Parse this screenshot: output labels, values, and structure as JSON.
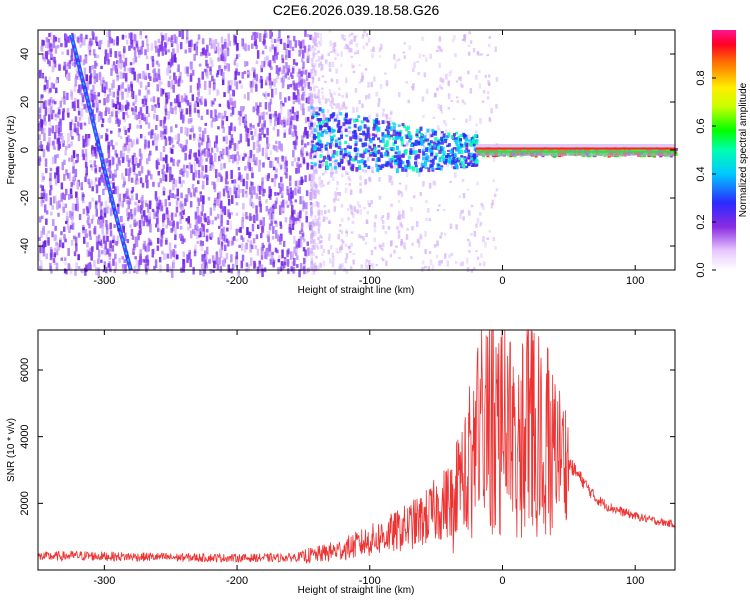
{
  "title": "C2E6.2026.039.18.58.G26",
  "chart_data": [
    {
      "type": "heatmap",
      "xlabel": "Height of straight line (km)",
      "ylabel": "Frequency (Hz)",
      "xlim": [
        -350,
        130
      ],
      "ylim": [
        -50,
        50
      ],
      "xticks": [
        -300,
        -200,
        -100,
        0,
        100
      ],
      "yticks": [
        -40,
        -20,
        0,
        20,
        40
      ],
      "colorbar": {
        "label": "Normalized spectral amplitude",
        "range": [
          0,
          1
        ],
        "ticks": [
          0.0,
          0.2,
          0.4,
          0.6,
          0.8
        ],
        "tick_labels": [
          "0.0",
          "0.2",
          "0.4",
          "0.6",
          "0.8"
        ]
      },
      "features": {
        "noise_region": [
          -350,
          -145
        ],
        "drifting_trace": [
          [
            -325,
            48
          ],
          [
            -310,
            15
          ],
          [
            -300,
            -8
          ],
          [
            -290,
            -30
          ],
          [
            -280,
            -50
          ]
        ],
        "carrier_band": [
          [
            -145,
            6
          ],
          [
            -100,
            3
          ],
          [
            -60,
            1
          ],
          [
            -20,
            0
          ],
          [
            20,
            0
          ],
          [
            60,
            0
          ],
          [
            100,
            0
          ],
          [
            130,
            0
          ]
        ]
      }
    },
    {
      "type": "line",
      "xlabel": "Height of straight line (km)",
      "ylabel": "SNR (10 * v/v)",
      "xlim": [
        -350,
        130
      ],
      "ylim": [
        0,
        7200
      ],
      "xticks": [
        -300,
        -200,
        -100,
        0,
        100
      ],
      "yticks": [
        2000,
        4000,
        6000
      ],
      "series": [
        {
          "name": "SNR",
          "color": "#ee3333",
          "x": [
            -350,
            -320,
            -300,
            -250,
            -200,
            -160,
            -140,
            -120,
            -100,
            -80,
            -60,
            -40,
            -30,
            -20,
            -10,
            0,
            10,
            20,
            30,
            40,
            50,
            60,
            70,
            80,
            90,
            100,
            110,
            120,
            130
          ],
          "y": [
            400,
            430,
            410,
            380,
            360,
            370,
            460,
            620,
            880,
            1150,
            1500,
            2100,
            3000,
            4300,
            5300,
            5200,
            4800,
            4900,
            4700,
            3800,
            3200,
            2700,
            2150,
            1900,
            1750,
            1620,
            1520,
            1430,
            1380
          ]
        }
      ]
    }
  ]
}
